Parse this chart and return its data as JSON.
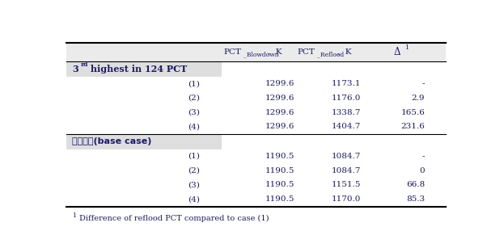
{
  "section1_label_main": "3",
  "section1_label_sup": "rd",
  "section1_label_rest": " highest in 124 PCT",
  "section2_label": "기본계산(base case)",
  "col_headers": [
    [
      "PCT",
      "_Blowdown",
      ", K"
    ],
    [
      "PCT",
      "_Reflood",
      ", K"
    ],
    [
      "Δ",
      "1",
      ""
    ]
  ],
  "rows_s1": [
    [
      "(1)",
      "1299.6",
      "1173.1",
      "-"
    ],
    [
      "(2)",
      "1299.6",
      "1176.0",
      "2.9"
    ],
    [
      "(3)",
      "1299.6",
      "1338.7",
      "165.6"
    ],
    [
      "(4)",
      "1299.6",
      "1404.7",
      "231.6"
    ]
  ],
  "rows_s2": [
    [
      "(1)",
      "1190.5",
      "1084.7",
      "-"
    ],
    [
      "(2)",
      "1190.5",
      "1084.7",
      "0"
    ],
    [
      "(3)",
      "1190.5",
      "1151.5",
      "66.8"
    ],
    [
      "(4)",
      "1190.5",
      "1170.0",
      "85.3"
    ]
  ],
  "footnote_sup": "1",
  "footnote_text": "Difference of reflood PCT compared to case (1)",
  "bg_section": "#dedede",
  "text_color": "#1a1a6e",
  "border_color": "#555555",
  "font_size": 7.5,
  "sub_font_size": 5.5,
  "sup_font_size": 5.5,
  "fig_width": 6.18,
  "fig_height": 3.07,
  "dpi": 100
}
